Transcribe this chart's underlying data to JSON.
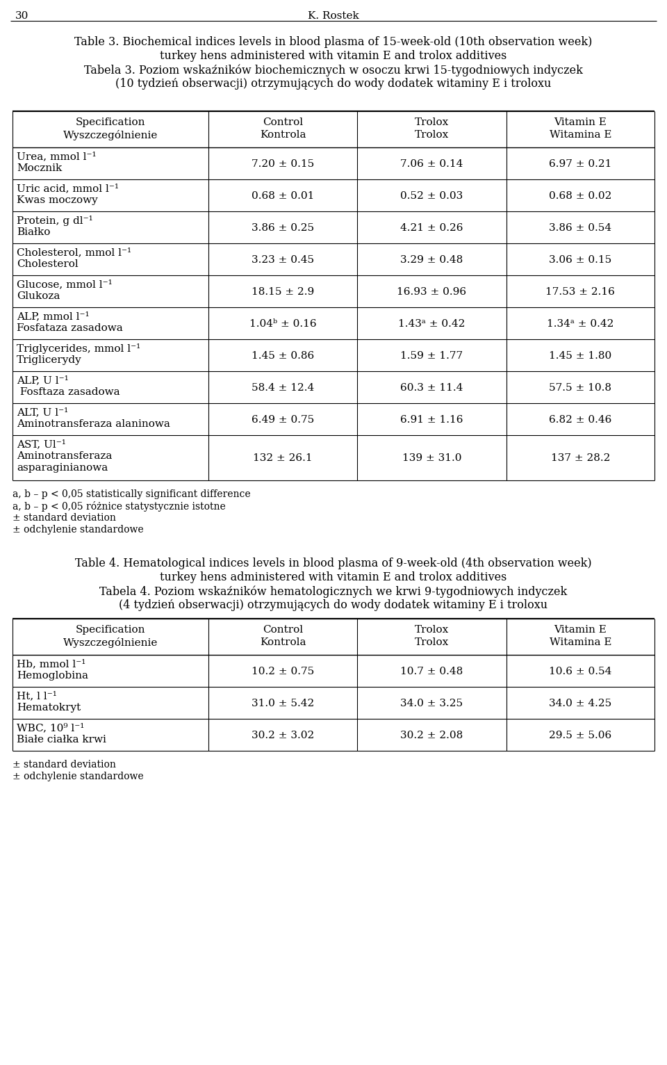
{
  "page_header": "30",
  "page_header_right": "K. Rostek",
  "table3_title_en_line1": "Table 3. Biochemical indices levels in blood plasma of 15-week-old (10th observation week)",
  "table3_title_en_line2": "turkey hens administered with vitamin E and trolox additives",
  "table3_title_pl_line1": "Tabela 3. Poziom wskaźników biochemicznych w osoczu krwi 15-tygodniowych indyczek",
  "table3_title_pl_line2": "(10 tydzień obserwacji) otrzymujących do wody dodatek witaminy E i troloxu",
  "col_headers": [
    [
      "Specification",
      "Wyszczególnienie"
    ],
    [
      "Control",
      "Kontrola"
    ],
    [
      "Trolox",
      "Trolox"
    ],
    [
      "Vitamin E",
      "Witamina E"
    ]
  ],
  "table3_rows": [
    {
      "spec_line1": "Urea, mmol l⁻¹",
      "spec_line2": "Mocznik",
      "spec_extra": "",
      "control": "7.20 ± 0.15",
      "trolox": "7.06 ± 0.14",
      "vitE": "6.97 ± 0.21"
    },
    {
      "spec_line1": "Uric acid, mmol l⁻¹",
      "spec_line2": "Kwas moczowy",
      "spec_extra": "",
      "control": "0.68 ± 0.01",
      "trolox": "0.52 ± 0.03",
      "vitE": "0.68 ± 0.02"
    },
    {
      "spec_line1": "Protein, g dl⁻¹",
      "spec_line2": "Białko",
      "spec_extra": "",
      "control": "3.86 ± 0.25",
      "trolox": "4.21 ± 0.26",
      "vitE": "3.86 ± 0.54"
    },
    {
      "spec_line1": "Cholesterol, mmol l⁻¹",
      "spec_line2": "Cholesterol",
      "spec_extra": "",
      "control": "3.23 ± 0.45",
      "trolox": "3.29 ± 0.48",
      "vitE": "3.06 ± 0.15"
    },
    {
      "spec_line1": "Glucose, mmol l⁻¹",
      "spec_line2": "Glukoza",
      "spec_extra": "",
      "control": "18.15 ± 2.9",
      "trolox": "16.93 ± 0.96",
      "vitE": "17.53 ± 2.16"
    },
    {
      "spec_line1": "ALP, mmol l⁻¹",
      "spec_line2": "Fosfataza zasadowa",
      "spec_extra": "",
      "control": "1.04ᵇ ± 0.16",
      "trolox": "1.43ᵃ ± 0.42",
      "vitE": "1.34ᵃ ± 0.42"
    },
    {
      "spec_line1": "Triglycerides, mmol l⁻¹",
      "spec_line2": "Triglicerydy",
      "spec_extra": "",
      "control": "1.45 ± 0.86",
      "trolox": "1.59 ± 1.77",
      "vitE": "1.45 ± 1.80"
    },
    {
      "spec_line1": "ALP, U l⁻¹",
      "spec_line2": " Fosftaza zasadowa",
      "spec_extra": "",
      "control": "58.4 ± 12.4",
      "trolox": "60.3 ± 11.4",
      "vitE": "57.5 ± 10.8"
    },
    {
      "spec_line1": "ALT, U l⁻¹",
      "spec_line2": "Aminotransferaza alaninowa",
      "spec_extra": "",
      "control": "6.49 ± 0.75",
      "trolox": "6.91 ± 1.16",
      "vitE": "6.82 ± 0.46"
    },
    {
      "spec_line1": "AST, Ul⁻¹",
      "spec_line2": "Aminotransferaza",
      "spec_extra": "asparaginianowa",
      "control": "132 ± 26.1",
      "trolox": "139 ± 31.0",
      "vitE": "137 ± 28.2"
    }
  ],
  "table3_footnotes": [
    "a, b – p < 0,05 statistically significant difference",
    "a, b – p < 0,05 różnice statystycznie istotne",
    "± standard deviation",
    "± odchylenie standardowe"
  ],
  "table4_title_en_line1": "Table 4. Hematological indices levels in blood plasma of 9-week-old (4th observation week)",
  "table4_title_en_line2": "turkey hens administered with vitamin E and trolox additives",
  "table4_title_pl_line1": "Tabela 4. Poziom wskaźników hematologicznych we krwi 9-tygodniowych indyczek",
  "table4_title_pl_line2": "(4 tydzień obserwacji) otrzymujących do wody dodatek witaminy E i troloxu",
  "table4_rows": [
    {
      "spec_line1": "Hb, mmol l⁻¹",
      "spec_line2": "Hemoglobina",
      "spec_extra": "",
      "control": "10.2 ± 0.75",
      "trolox": "10.7 ± 0.48",
      "vitE": "10.6 ± 0.54"
    },
    {
      "spec_line1": "Ht, l l⁻¹",
      "spec_line2": "Hematokryt",
      "spec_extra": "",
      "control": "31.0 ± 5.42",
      "trolox": "34.0 ± 3.25",
      "vitE": "34.0 ± 4.25"
    },
    {
      "spec_line1": "WBC, 10⁹ l⁻¹",
      "spec_line2": "Białe ciałka krwi",
      "spec_extra": "",
      "control": "30.2 ± 3.02",
      "trolox": "30.2 ± 2.08",
      "vitE": "29.5 ± 5.06"
    }
  ],
  "table4_footnotes": [
    "± standard deviation",
    "± odchylenie standardowe"
  ],
  "font_size_header_page": 11,
  "font_size_title": 11.5,
  "font_size_table_header": 11,
  "font_size_table_data": 11,
  "font_size_footnote": 10,
  "bg_color": "#ffffff"
}
